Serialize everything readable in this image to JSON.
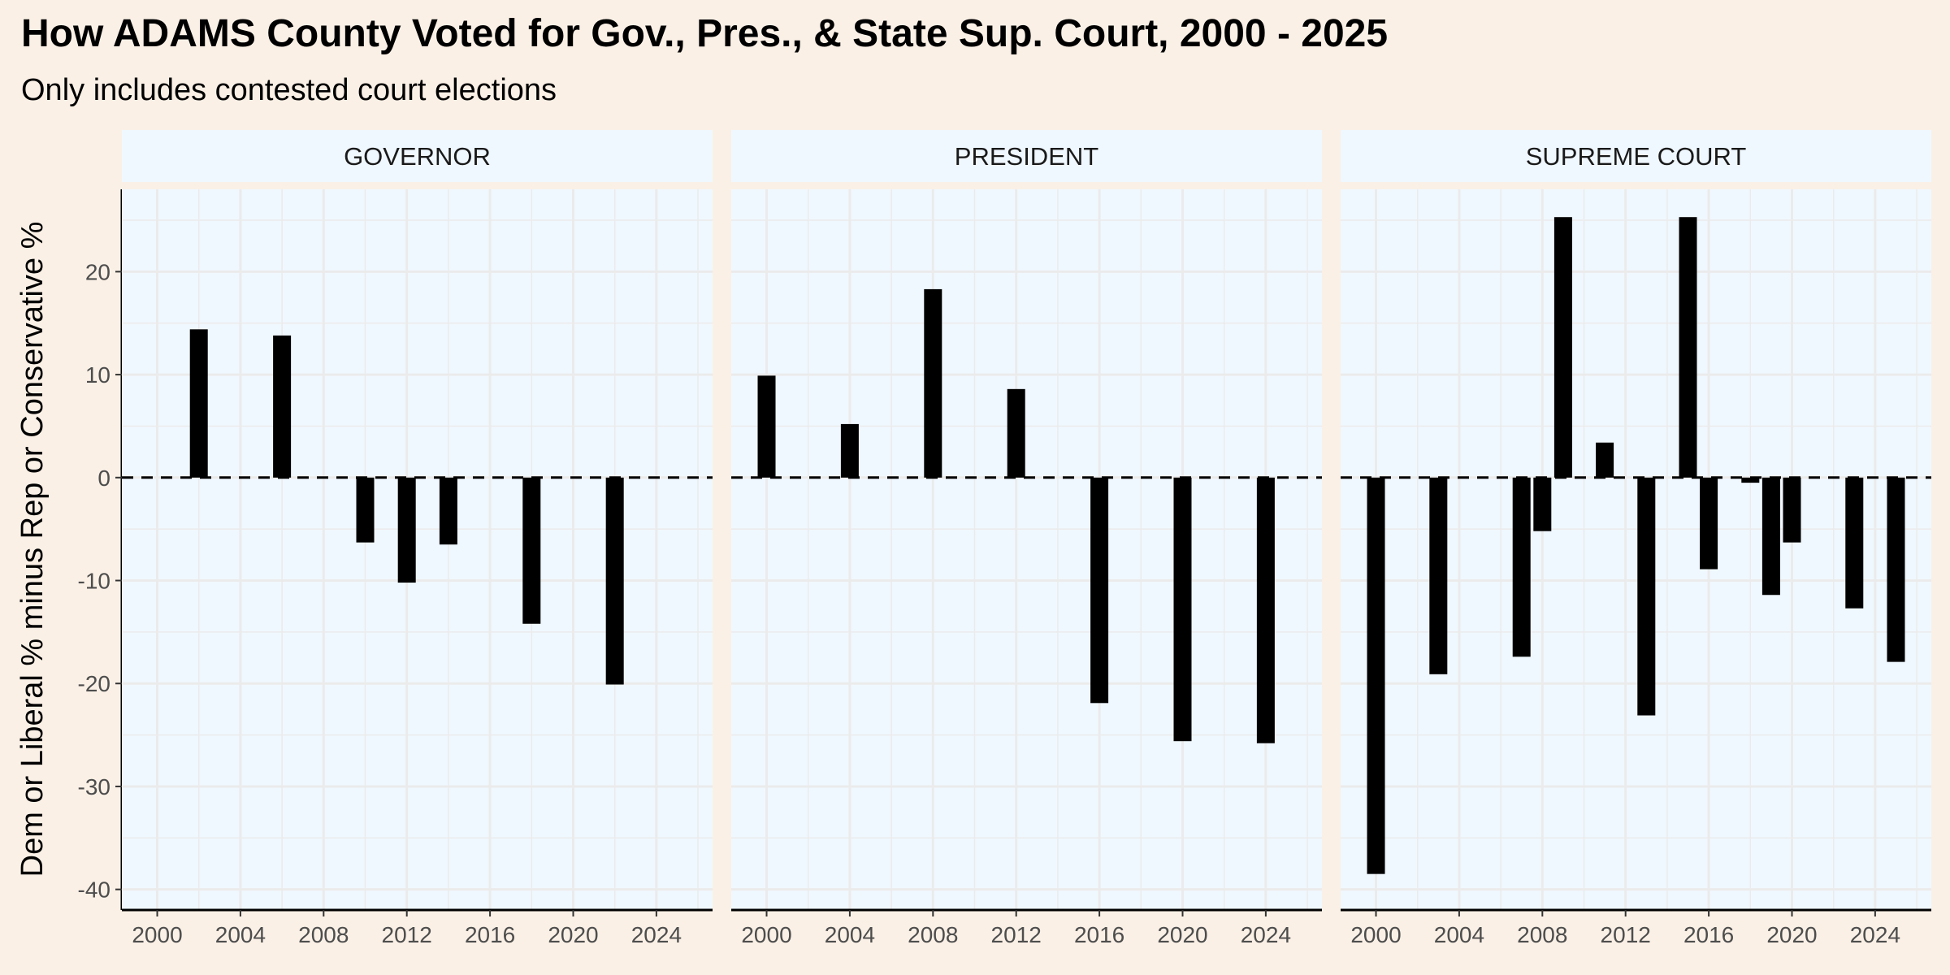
{
  "title": "How ADAMS County Voted for Gov., Pres., & State Sup. Court, 2000 - 2025",
  "subtitle": "Only includes contested court elections",
  "colors": {
    "page_background": "#faf0e6",
    "panel_background": "#f0f8ff",
    "strip_background": "#f0f8ff",
    "bar": "#000000",
    "grid": "#ebebeb"
  },
  "chart_data": {
    "type": "bar",
    "title": "How ADAMS County Voted for Gov., Pres., & State Sup. Court, 2000 - 2025",
    "subtitle": "Only includes contested court elections",
    "xlabel": "",
    "ylabel": "Dem or Liberal % minus Rep or Conservative %",
    "ylim": [
      -42,
      28
    ],
    "xlim": [
      1998.3,
      2026.7
    ],
    "y_ticks": [
      -40,
      -30,
      -20,
      -10,
      0,
      10,
      20
    ],
    "x_ticks": [
      2000,
      2004,
      2008,
      2012,
      2016,
      2020,
      2024
    ],
    "reference_line": {
      "y": 0,
      "style": "dashed"
    },
    "grid": true,
    "legend": "none",
    "panels": [
      {
        "name": "GOVERNOR",
        "x": [
          2002,
          2006,
          2010,
          2012,
          2014,
          2018,
          2022
        ],
        "values": [
          14.4,
          13.8,
          -6.3,
          -10.2,
          -6.5,
          -14.2,
          -20.1
        ]
      },
      {
        "name": "PRESIDENT",
        "x": [
          2000,
          2004,
          2008,
          2012,
          2016,
          2020,
          2024
        ],
        "values": [
          9.9,
          5.2,
          18.3,
          8.6,
          -21.9,
          -25.6,
          -25.8
        ]
      },
      {
        "name": "SUPREME COURT",
        "x": [
          2000,
          2003,
          2007,
          2008,
          2009,
          2011,
          2013,
          2015,
          2016,
          2018,
          2019,
          2020,
          2023,
          2025
        ],
        "values": [
          -38.5,
          -19.1,
          -17.4,
          -5.2,
          25.3,
          3.4,
          -23.1,
          25.3,
          -8.9,
          -0.5,
          -11.4,
          -6.3,
          -12.7,
          -17.9
        ]
      }
    ]
  }
}
